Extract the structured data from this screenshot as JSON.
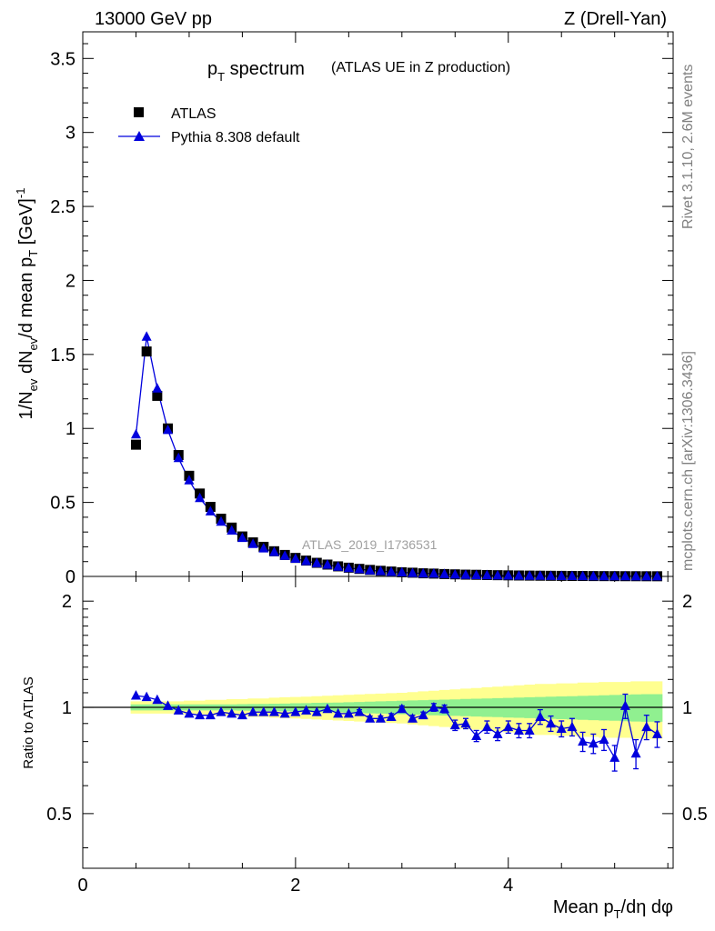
{
  "header": {
    "left": "13000 GeV pp",
    "right": "Z (Drell-Yan)"
  },
  "side": {
    "rivet": "Rivet 3.1.10,  2.6M events",
    "mcplots": "mcplots.cern.ch [arXiv:1306.3436]"
  },
  "plot_title": {
    "main": "p",
    "sub": "T",
    "rest": " spectrum",
    "note": "(ATLAS UE in Z production)"
  },
  "analysis_label": "ATLAS_2019_I1736531",
  "main_ylabel": {
    "a": "1/N",
    "a_sub": "ev",
    "b": " dN",
    "b_sub": "ev",
    "c": "/d mean p",
    "c_sub": "T",
    "d": " [GeV]",
    "d_sup": "-1"
  },
  "ratio_ylabel": "Ratio to ATLAS",
  "xlabel": {
    "a": "Mean p",
    "a_sub": "T",
    "b": "/dη dφ"
  },
  "colors": {
    "data": "#000000",
    "mc": "#0000dd",
    "band_green": "#90f090",
    "band_yellow": "#ffff90"
  },
  "chart_data": [
    {
      "type": "scatter",
      "panel": "main",
      "xlim": [
        0,
        5.55
      ],
      "ylim": [
        0,
        3.68
      ],
      "yticks": [
        0,
        0.5,
        1,
        1.5,
        2,
        2.5,
        3,
        3.5
      ],
      "ytick_labels": [
        "0",
        "0.5",
        "1",
        "1.5",
        "2",
        "2.5",
        "3",
        "3.5"
      ],
      "legend": [
        "ATLAS",
        "Pythia 8.308 default"
      ],
      "series": [
        {
          "name": "ATLAS",
          "marker": "square",
          "x": [
            0.5,
            0.6,
            0.7,
            0.8,
            0.9,
            1.0,
            1.1,
            1.2,
            1.3,
            1.4,
            1.5,
            1.6,
            1.7,
            1.8,
            1.9,
            2.0,
            2.1,
            2.2,
            2.3,
            2.4,
            2.5,
            2.6,
            2.7,
            2.8,
            2.9,
            3.0,
            3.1,
            3.2,
            3.3,
            3.4,
            3.5,
            3.6,
            3.7,
            3.8,
            3.9,
            4.0,
            4.1,
            4.2,
            4.3,
            4.4,
            4.5,
            4.6,
            4.7,
            4.8,
            4.9,
            5.0,
            5.1,
            5.2,
            5.3,
            5.4
          ],
          "values": [
            0.89,
            1.52,
            1.22,
            1.0,
            0.82,
            0.68,
            0.56,
            0.47,
            0.39,
            0.33,
            0.27,
            0.23,
            0.2,
            0.17,
            0.145,
            0.125,
            0.107,
            0.092,
            0.08,
            0.068,
            0.059,
            0.051,
            0.044,
            0.038,
            0.033,
            0.028,
            0.025,
            0.021,
            0.019,
            0.016,
            0.014,
            0.012,
            0.011,
            0.0095,
            0.0083,
            0.0072,
            0.0063,
            0.0055,
            0.0048,
            0.0042,
            0.0037,
            0.0032,
            0.0028,
            0.0024,
            0.0021,
            0.0019,
            0.0016,
            0.0014,
            0.0012,
            0.0011
          ]
        },
        {
          "name": "Pythia 8.308 default",
          "marker": "triangle",
          "x": [
            0.5,
            0.6,
            0.7,
            0.8,
            0.9,
            1.0,
            1.1,
            1.2,
            1.3,
            1.4,
            1.5,
            1.6,
            1.7,
            1.8,
            1.9,
            2.0,
            2.1,
            2.2,
            2.3,
            2.4,
            2.5,
            2.6,
            2.7,
            2.8,
            2.9,
            3.0,
            3.1,
            3.2,
            3.3,
            3.4,
            3.5,
            3.6,
            3.7,
            3.8,
            3.9,
            4.0,
            4.1,
            4.2,
            4.3,
            4.4,
            4.5,
            4.6,
            4.7,
            4.8,
            4.9,
            5.0,
            5.1,
            5.2,
            5.3,
            5.4
          ],
          "values": [
            0.96,
            1.62,
            1.27,
            0.99,
            0.8,
            0.65,
            0.53,
            0.44,
            0.37,
            0.31,
            0.26,
            0.22,
            0.19,
            0.165,
            0.14,
            0.12,
            0.104,
            0.09,
            0.079,
            0.066,
            0.057,
            0.049,
            0.041,
            0.036,
            0.031,
            0.028,
            0.023,
            0.02,
            0.019,
            0.016,
            0.013,
            0.011,
            0.009,
            0.0083,
            0.007,
            0.0063,
            0.0055,
            0.0047,
            0.0045,
            0.0037,
            0.0032,
            0.0028,
            0.0022,
            0.0019,
            0.0017,
            0.0014,
            0.0016,
            0.001,
            0.001,
            0.0009
          ]
        }
      ]
    },
    {
      "type": "line",
      "panel": "ratio",
      "xlim": [
        0,
        5.55
      ],
      "ylim": [
        0.35,
        2.35
      ],
      "yscale": "log",
      "yticks": [
        0.5,
        1,
        2
      ],
      "ytick_labels": [
        "0.5",
        "1",
        "2"
      ],
      "xticks": [
        0,
        2,
        4
      ],
      "xtick_labels": [
        "0",
        "2",
        "4"
      ],
      "x": [
        0.5,
        0.6,
        0.7,
        0.8,
        0.9,
        1.0,
        1.1,
        1.2,
        1.3,
        1.4,
        1.5,
        1.6,
        1.7,
        1.8,
        1.9,
        2.0,
        2.1,
        2.2,
        2.3,
        2.4,
        2.5,
        2.6,
        2.7,
        2.8,
        2.9,
        3.0,
        3.1,
        3.2,
        3.3,
        3.4,
        3.5,
        3.6,
        3.7,
        3.8,
        3.9,
        4.0,
        4.1,
        4.2,
        4.3,
        4.4,
        4.5,
        4.6,
        4.7,
        4.8,
        4.9,
        5.0,
        5.1,
        5.2,
        5.3,
        5.4
      ],
      "series": [
        {
          "name": "Pythia 8.308 default / ATLAS",
          "values": [
            1.08,
            1.07,
            1.05,
            1.01,
            0.98,
            0.96,
            0.95,
            0.95,
            0.97,
            0.96,
            0.95,
            0.97,
            0.97,
            0.97,
            0.96,
            0.97,
            0.98,
            0.97,
            0.99,
            0.96,
            0.96,
            0.97,
            0.93,
            0.93,
            0.94,
            0.99,
            0.93,
            0.95,
            1.0,
            0.99,
            0.89,
            0.9,
            0.83,
            0.88,
            0.84,
            0.88,
            0.86,
            0.86,
            0.94,
            0.9,
            0.87,
            0.88,
            0.8,
            0.79,
            0.81,
            0.72,
            1.01,
            0.74,
            0.88,
            0.84
          ],
          "errors": [
            0.01,
            0.01,
            0.01,
            0.01,
            0.01,
            0.01,
            0.01,
            0.01,
            0.01,
            0.01,
            0.01,
            0.01,
            0.01,
            0.01,
            0.01,
            0.01,
            0.01,
            0.01,
            0.01,
            0.01,
            0.01,
            0.015,
            0.015,
            0.015,
            0.02,
            0.02,
            0.02,
            0.02,
            0.025,
            0.025,
            0.03,
            0.03,
            0.03,
            0.035,
            0.035,
            0.035,
            0.04,
            0.04,
            0.045,
            0.045,
            0.045,
            0.05,
            0.05,
            0.05,
            0.055,
            0.06,
            0.08,
            0.07,
            0.07,
            0.07
          ]
        }
      ],
      "band_green": [
        0.02,
        0.02,
        0.02,
        0.02,
        0.02,
        0.02,
        0.02,
        0.02,
        0.02,
        0.02,
        0.021,
        0.022,
        0.023,
        0.024,
        0.025,
        0.027,
        0.028,
        0.03,
        0.031,
        0.032,
        0.034,
        0.036,
        0.038,
        0.04,
        0.042,
        0.044,
        0.046,
        0.048,
        0.05,
        0.052,
        0.054,
        0.056,
        0.058,
        0.06,
        0.062,
        0.064,
        0.066,
        0.068,
        0.07,
        0.072,
        0.074,
        0.076,
        0.078,
        0.08,
        0.082,
        0.084,
        0.086,
        0.088,
        0.09,
        0.09
      ],
      "band_yellow": [
        0.04,
        0.04,
        0.04,
        0.04,
        0.04,
        0.045,
        0.045,
        0.05,
        0.05,
        0.055,
        0.055,
        0.06,
        0.06,
        0.065,
        0.068,
        0.07,
        0.073,
        0.076,
        0.079,
        0.082,
        0.085,
        0.088,
        0.091,
        0.094,
        0.097,
        0.1,
        0.105,
        0.11,
        0.115,
        0.12,
        0.125,
        0.13,
        0.135,
        0.14,
        0.145,
        0.15,
        0.155,
        0.16,
        0.165,
        0.165,
        0.17,
        0.17,
        0.175,
        0.175,
        0.18,
        0.18,
        0.18,
        0.185,
        0.185,
        0.185
      ]
    }
  ]
}
